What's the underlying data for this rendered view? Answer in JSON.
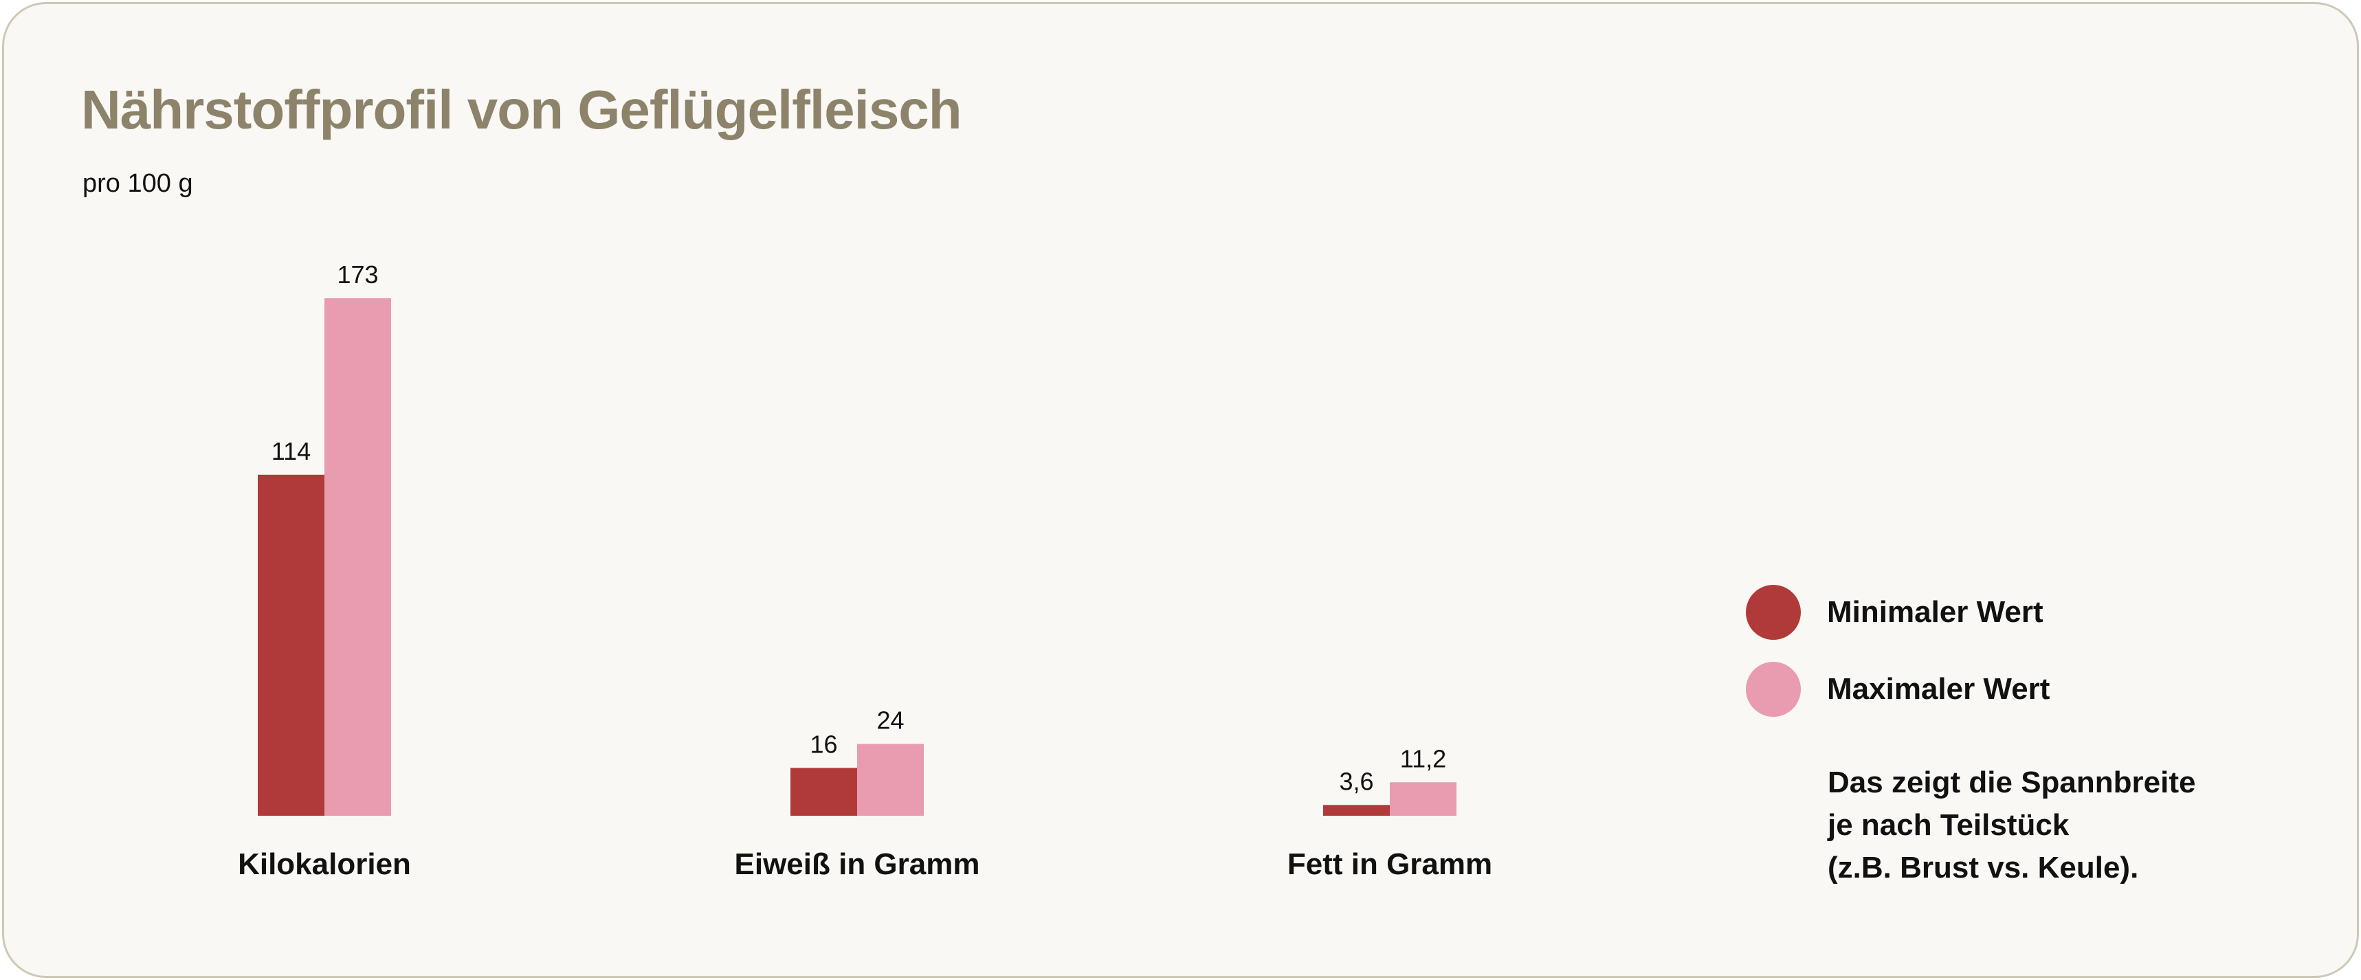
{
  "chart_data": {
    "type": "bar",
    "title": "Nährstoffprofil von Geflügelfleisch",
    "subtitle": "pro 100 g",
    "categories": [
      "Kilokalorien",
      "Eiweiß in Gramm",
      "Fett in Gramm"
    ],
    "series": [
      {
        "name": "Minimaler Wert",
        "color": "#b03a3a",
        "values": [
          114,
          16,
          3.6
        ],
        "labels": [
          "114",
          "16",
          "3,6"
        ]
      },
      {
        "name": "Maximaler Wert",
        "color": "#e99bb0",
        "values": [
          173,
          24,
          11.2
        ],
        "labels": [
          "173",
          "24",
          "11,2"
        ]
      }
    ],
    "ylim": [
      0,
      173
    ],
    "grid": false,
    "legend_position": "right",
    "note": [
      "Das zeigt die Spannbreite",
      "je nach Teilstück",
      "(z.B. Brust vs. Keule)."
    ]
  }
}
